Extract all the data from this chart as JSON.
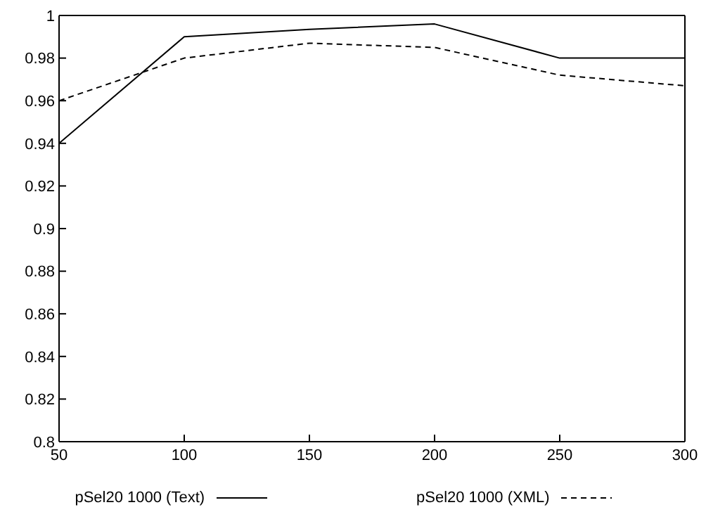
{
  "chart_data": {
    "type": "line",
    "x": [
      50,
      100,
      150,
      200,
      250,
      300
    ],
    "series": [
      {
        "name": "pSel20 1000 (Text)",
        "color": "#000000",
        "line_style": "solid",
        "values": [
          0.94,
          0.99,
          0.9935,
          0.996,
          0.98,
          0.98
        ]
      },
      {
        "name": "pSel20 1000 (XML)",
        "color": "#000000",
        "line_style": "dashed",
        "values": [
          0.96,
          0.98,
          0.987,
          0.985,
          0.972,
          0.967
        ]
      }
    ],
    "xlim": [
      50,
      300
    ],
    "xticks": [
      50,
      100,
      150,
      200,
      250,
      300
    ],
    "ylim": [
      0.8,
      1
    ],
    "yticks": [
      0.8,
      0.82,
      0.84,
      0.86,
      0.88,
      0.9,
      0.92,
      0.94,
      0.96,
      0.98,
      1
    ],
    "grid": false,
    "legend": "bottom",
    "marker": "none"
  }
}
